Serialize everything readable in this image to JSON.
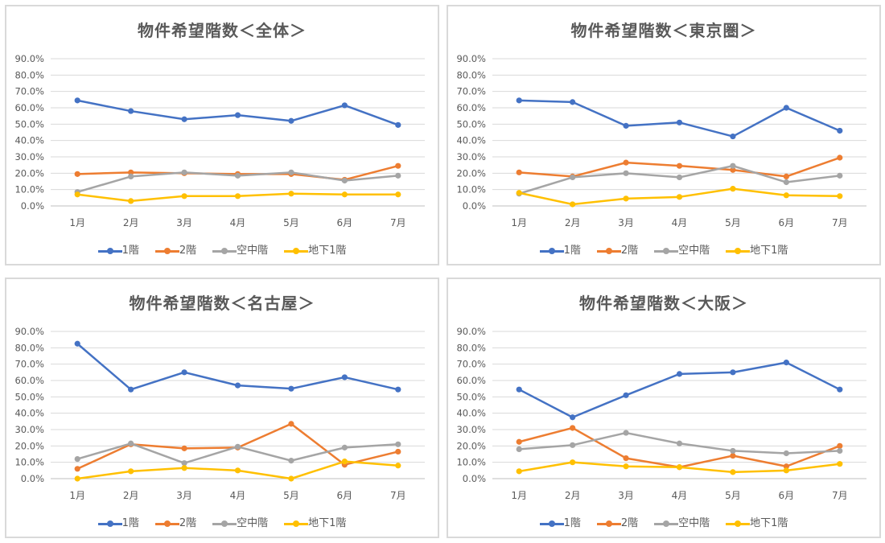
{
  "chart_data": [
    {
      "type": "line",
      "title": "物件希望階数＜全体＞",
      "categories": [
        "1月",
        "2月",
        "3月",
        "4月",
        "5月",
        "6月",
        "7月"
      ],
      "ylim": [
        0,
        90
      ],
      "yticks": [
        "0.0%",
        "10.0%",
        "20.0%",
        "30.0%",
        "40.0%",
        "50.0%",
        "60.0%",
        "70.0%",
        "80.0%",
        "90.0%"
      ],
      "grid": true,
      "legend": "bottom",
      "series": [
        {
          "name": "1階",
          "color": "#4472C4",
          "values": [
            64.5,
            58.0,
            53.0,
            55.5,
            52.0,
            61.5,
            49.5
          ]
        },
        {
          "name": "2階",
          "color": "#ED7D31",
          "values": [
            19.5,
            20.5,
            20.0,
            19.5,
            19.5,
            16.0,
            24.5
          ]
        },
        {
          "name": "空中階",
          "color": "#A5A5A5",
          "values": [
            8.5,
            18.0,
            20.5,
            18.5,
            20.5,
            15.5,
            18.5
          ]
        },
        {
          "name": "地下1階",
          "color": "#FFC000",
          "values": [
            7.0,
            3.0,
            6.0,
            6.0,
            7.5,
            7.0,
            7.0
          ]
        }
      ]
    },
    {
      "type": "line",
      "title": "物件希望階数＜東京圏＞",
      "categories": [
        "1月",
        "2月",
        "3月",
        "4月",
        "5月",
        "6月",
        "7月"
      ],
      "ylim": [
        0,
        90
      ],
      "yticks": [
        "0.0%",
        "10.0%",
        "20.0%",
        "30.0%",
        "40.0%",
        "50.0%",
        "60.0%",
        "70.0%",
        "80.0%",
        "90.0%"
      ],
      "grid": true,
      "legend": "bottom",
      "series": [
        {
          "name": "1階",
          "color": "#4472C4",
          "values": [
            64.5,
            63.5,
            49.0,
            51.0,
            42.5,
            60.0,
            46.0
          ]
        },
        {
          "name": "2階",
          "color": "#ED7D31",
          "values": [
            20.5,
            18.0,
            26.5,
            24.5,
            22.0,
            18.0,
            29.5
          ]
        },
        {
          "name": "空中階",
          "color": "#A5A5A5",
          "values": [
            7.5,
            17.5,
            20.0,
            17.5,
            24.5,
            14.5,
            18.5
          ]
        },
        {
          "name": "地下1階",
          "color": "#FFC000",
          "values": [
            8.0,
            1.0,
            4.5,
            5.5,
            10.5,
            6.5,
            6.0
          ]
        }
      ]
    },
    {
      "type": "line",
      "title": "物件希望階数＜名古屋＞",
      "categories": [
        "1月",
        "2月",
        "3月",
        "4月",
        "5月",
        "6月",
        "7月"
      ],
      "ylim": [
        0,
        90
      ],
      "yticks": [
        "0.0%",
        "10.0%",
        "20.0%",
        "30.0%",
        "40.0%",
        "50.0%",
        "60.0%",
        "70.0%",
        "80.0%",
        "90.0%"
      ],
      "grid": true,
      "legend": "bottom",
      "series": [
        {
          "name": "1階",
          "color": "#4472C4",
          "values": [
            82.5,
            54.5,
            65.0,
            57.0,
            55.0,
            62.0,
            54.5
          ]
        },
        {
          "name": "2階",
          "color": "#ED7D31",
          "values": [
            6.0,
            21.0,
            18.5,
            19.0,
            33.5,
            8.5,
            16.5
          ]
        },
        {
          "name": "空中階",
          "color": "#A5A5A5",
          "values": [
            12.0,
            21.5,
            9.5,
            19.5,
            11.0,
            19.0,
            21.0
          ]
        },
        {
          "name": "地下1階",
          "color": "#FFC000",
          "values": [
            0.0,
            4.5,
            6.5,
            5.0,
            0.0,
            10.5,
            8.0
          ]
        }
      ]
    },
    {
      "type": "line",
      "title": "物件希望階数＜大阪＞",
      "categories": [
        "1月",
        "2月",
        "3月",
        "4月",
        "5月",
        "6月",
        "7月"
      ],
      "ylim": [
        0,
        90
      ],
      "yticks": [
        "0.0%",
        "10.0%",
        "20.0%",
        "30.0%",
        "40.0%",
        "50.0%",
        "60.0%",
        "70.0%",
        "80.0%",
        "90.0%"
      ],
      "grid": true,
      "legend": "bottom",
      "series": [
        {
          "name": "1階",
          "color": "#4472C4",
          "values": [
            54.5,
            37.5,
            51.0,
            64.0,
            65.0,
            71.0,
            54.5
          ]
        },
        {
          "name": "2階",
          "color": "#ED7D31",
          "values": [
            22.5,
            31.0,
            12.5,
            7.0,
            14.0,
            7.5,
            20.0
          ]
        },
        {
          "name": "空中階",
          "color": "#A5A5A5",
          "values": [
            18.0,
            20.5,
            28.0,
            21.5,
            17.0,
            15.5,
            17.0
          ]
        },
        {
          "name": "地下1階",
          "color": "#FFC000",
          "values": [
            4.5,
            10.0,
            7.5,
            7.0,
            4.0,
            5.0,
            9.0
          ]
        }
      ]
    }
  ]
}
